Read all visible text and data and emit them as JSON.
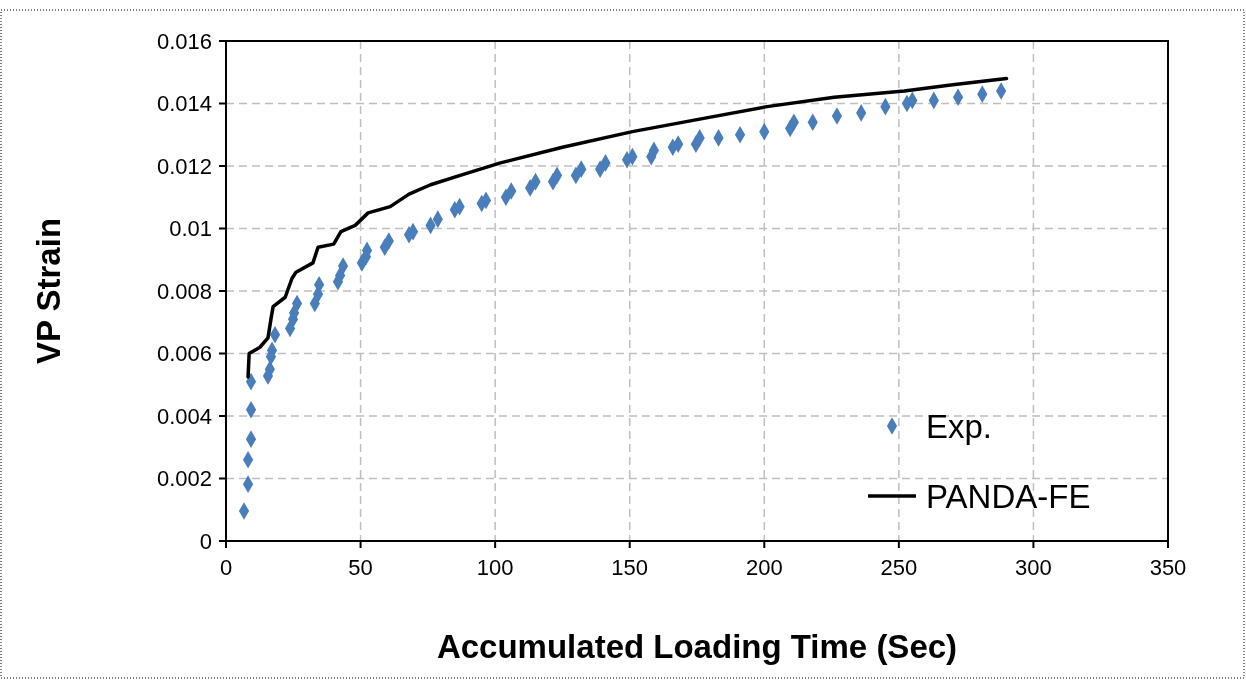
{
  "chart_data": {
    "type": "scatter",
    "xlabel": "Accumulated Loading Time (Sec)",
    "ylabel": "VP Strain",
    "xlim": [
      0,
      350
    ],
    "xticks": [
      0,
      50,
      100,
      150,
      200,
      250,
      300,
      350
    ],
    "ylim": [
      0,
      0.016
    ],
    "yticks": [
      0,
      0.002,
      0.004,
      0.006,
      0.008,
      0.01,
      0.012,
      0.014,
      0.016
    ],
    "grid": true,
    "legend": "bottom right",
    "series": [
      {
        "name": "Exp.",
        "marker": "diamond",
        "color": "#4a7ebb",
        "x": [
          6.7,
          8.2,
          8.2,
          9.3,
          9.3,
          9.3,
          15.6,
          16.3,
          16.7,
          17.1,
          18.2,
          23.8,
          24.9,
          25.3,
          26.4,
          33,
          34.2,
          34.6,
          41.6,
          42.4,
          43.5,
          50.5,
          52,
          52.4,
          59,
          60.5,
          68,
          69.5,
          76,
          78.7,
          85,
          86.8,
          95,
          96.6,
          104,
          106,
          113,
          115,
          121.5,
          123,
          130,
          132,
          139,
          141,
          149,
          151,
          158,
          159,
          166,
          168,
          174.6,
          176,
          183,
          191,
          200,
          209.6,
          211,
          218,
          227,
          236,
          245,
          253,
          255,
          263,
          272,
          281,
          288
        ],
        "values": [
          0.00096,
          0.00182,
          0.0026,
          0.00326,
          0.0042,
          0.0051,
          0.00528,
          0.0055,
          0.0059,
          0.0061,
          0.0066,
          0.0068,
          0.0071,
          0.0073,
          0.0076,
          0.0076,
          0.0079,
          0.0082,
          0.0083,
          0.0085,
          0.0088,
          0.0089,
          0.0091,
          0.0093,
          0.0094,
          0.0096,
          0.0098,
          0.0099,
          0.0101,
          0.0103,
          0.0106,
          0.0107,
          0.0108,
          0.0109,
          0.011,
          0.0112,
          0.0113,
          0.0115,
          0.0115,
          0.0117,
          0.0117,
          0.0119,
          0.0119,
          0.0121,
          0.0122,
          0.0123,
          0.0123,
          0.0125,
          0.0126,
          0.0127,
          0.0127,
          0.0129,
          0.0129,
          0.013,
          0.0131,
          0.0132,
          0.0134,
          0.0134,
          0.0136,
          0.0137,
          0.0139,
          0.014,
          0.0141,
          0.0141,
          0.0142,
          0.0143,
          0.0144
        ]
      },
      {
        "name": "PANDA-FE",
        "type": "line",
        "marker": "none",
        "line_style": "solid",
        "color": "#000000",
        "x": [
          8.2,
          8.6,
          12.6,
          15.6,
          16.7,
          17.5,
          22,
          24.5,
          26,
          32.3,
          34.2,
          40,
          42.7,
          48,
          52.8,
          61,
          68,
          76,
          87,
          102,
          125,
          151,
          176,
          201,
          226,
          252,
          270,
          290
        ],
        "values": [
          0.00525,
          0.006,
          0.0062,
          0.0065,
          0.0071,
          0.0075,
          0.0078,
          0.0084,
          0.0086,
          0.0089,
          0.0094,
          0.0095,
          0.0099,
          0.0101,
          0.0105,
          0.0107,
          0.0111,
          0.0114,
          0.0117,
          0.0121,
          0.0126,
          0.0131,
          0.0135,
          0.0139,
          0.0142,
          0.0144,
          0.0146,
          0.0148
        ]
      }
    ]
  }
}
